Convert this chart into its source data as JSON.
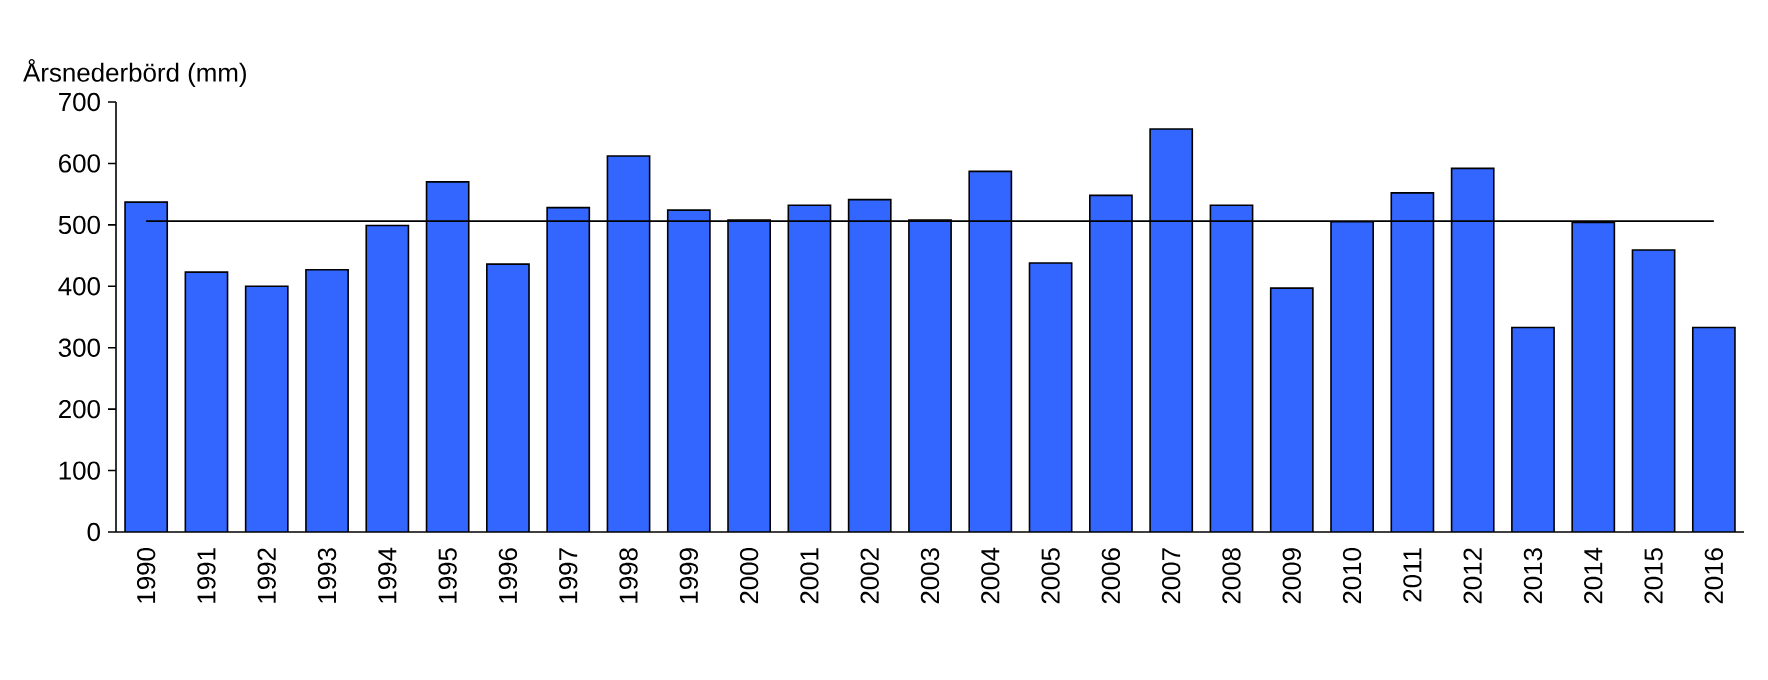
{
  "chart_data": {
    "type": "bar",
    "ylabel": "Årsnederbörd (mm)",
    "categories": [
      "1990",
      "1991",
      "1992",
      "1993",
      "1994",
      "1995",
      "1996",
      "1997",
      "1998",
      "1999",
      "2000",
      "2001",
      "2002",
      "2003",
      "2004",
      "2005",
      "2006",
      "2007",
      "2008",
      "2009",
      "2010",
      "2011",
      "2012",
      "2013",
      "2014",
      "2015",
      "2016"
    ],
    "values": [
      537,
      423,
      400,
      427,
      499,
      570,
      436,
      528,
      612,
      524,
      508,
      532,
      541,
      508,
      587,
      438,
      548,
      656,
      532,
      397,
      505,
      552,
      592,
      333,
      504,
      459,
      333
    ],
    "color": "#3366ff",
    "ylim": [
      0,
      700
    ],
    "yticks": [
      0,
      100,
      200,
      300,
      400,
      500,
      600,
      700
    ],
    "ref_lines": [
      {
        "axis": "y",
        "value": 506
      }
    ]
  }
}
